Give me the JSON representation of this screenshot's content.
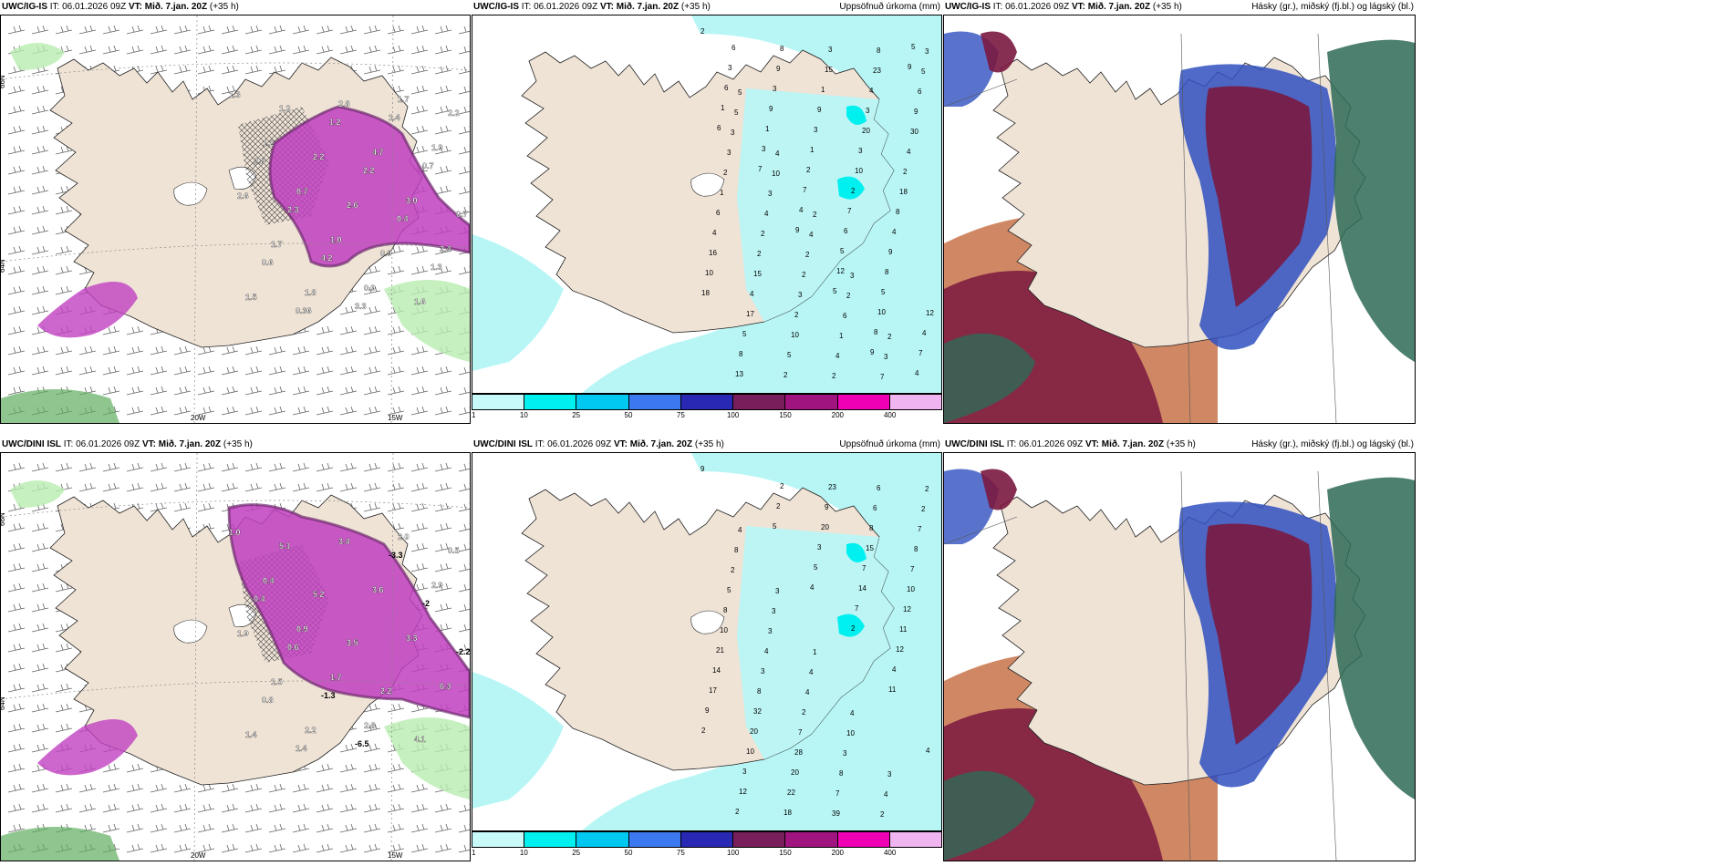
{
  "rows": [
    {
      "model": "UWC/IG-IS",
      "it_label": "IT: 06.01.2026 09Z",
      "vt_label": "VT: Mið. 7.jan. 20Z",
      "lead": "(+35 h)",
      "precip_values": [
        "2",
        "5",
        "4",
        "2",
        "3",
        "2",
        "3",
        "5",
        "10",
        "4",
        "2",
        "3",
        "5",
        "3",
        "3",
        "2",
        "6",
        "7",
        "6",
        "3",
        "4",
        "2",
        "1",
        "8",
        "9",
        "2",
        "2",
        "3",
        "4",
        "23",
        "30",
        "1",
        "2",
        "2",
        "2",
        "4",
        "4",
        "6",
        "15",
        "10",
        "3",
        "3",
        "2",
        "4",
        "4",
        "5",
        "15",
        "20",
        "18",
        "16",
        "17",
        "2",
        "1",
        "3",
        "8",
        "10",
        "5",
        "8",
        "9",
        "10",
        "4",
        "18",
        "8",
        "9",
        "3",
        "2",
        "9",
        "12",
        "13",
        "3",
        "1",
        "7",
        "8",
        "4",
        "6",
        "9",
        "2",
        "6",
        "5",
        "7",
        "3",
        "1",
        "7",
        "5",
        "10",
        "4",
        "6",
        "3",
        "4",
        "12",
        "8",
        "5",
        "1",
        "7",
        "9",
        "5",
        "9",
        "9",
        "6"
      ],
      "temp_values": [
        "1.3",
        "1.2",
        "0.7",
        "1.0",
        "0.9",
        "1.7",
        "1.9",
        "2.6",
        "1.7",
        "1.8",
        "2.8",
        "4.7",
        "3.0",
        "2.4",
        "1.5",
        "1.2",
        "2.2",
        "2.6",
        "0.9",
        "1.6",
        "2.2",
        "2.8",
        "2.3",
        "4.2",
        "3.3",
        "1.4",
        "0.7",
        "0.7",
        "0.6",
        "0.36",
        "1.2",
        "2.2",
        "0.4",
        "1.3"
      ]
    },
    {
      "model": "UWC/DINI ISL",
      "it_label": "IT: 06.01.2026 09Z",
      "vt_label": "VT: Mið. 7.jan. 20Z",
      "lead": "(+35 h)",
      "precip_values": [
        "9",
        "4",
        "3",
        "1",
        "4",
        "3",
        "2",
        "8",
        "3",
        "4",
        "10",
        "4",
        "2",
        "2",
        "3",
        "4",
        "3",
        "2",
        "7",
        "5",
        "4",
        "2",
        "8",
        "6",
        "8",
        "8",
        "3",
        "7",
        "7",
        "6",
        "7",
        "10",
        "8",
        "28",
        "39",
        "8",
        "10",
        "21",
        "32",
        "20",
        "23",
        "15",
        "12",
        "14",
        "20",
        "22",
        "9",
        "7",
        "11",
        "17",
        "10",
        "18",
        "20",
        "14",
        "12",
        "9",
        "3",
        "2",
        "3",
        "7",
        "4",
        "2",
        "12",
        "2",
        "5",
        "2",
        "11",
        "4",
        "2",
        "5",
        "4"
      ],
      "temp_values": [
        "1.0",
        "0.4",
        "0.9",
        "1.7",
        "2.8",
        "2.0",
        "2.9",
        "1.9",
        "1.5",
        "2.2",
        "3.4",
        "3.6",
        "3.3",
        "6.3",
        "1.4",
        "5.1",
        "5.2",
        "3.5",
        "2.2",
        "4.1",
        "0.5",
        "0.4",
        "0.6",
        "-1.3",
        "-6.5",
        "-3.3",
        "-2",
        "-2.2",
        "0.8",
        "1.4"
      ]
    }
  ],
  "precip_title": "Uppsöfnuð úrkoma (mm)",
  "cloud_title": "Hásky (gr.), miðský (fj.bl.) og lágský (bl.)",
  "lon_labels": [
    "20W",
    "15W",
    "25W"
  ],
  "lat_labels": [
    "66N",
    "64N",
    "63N"
  ],
  "colorbar": {
    "ticks": [
      "1",
      "10",
      "25",
      "50",
      "75",
      "100",
      "150",
      "200",
      "400"
    ],
    "colors": [
      "#c8fafa",
      "#00f0f0",
      "#00c8f0",
      "#3c78f0",
      "#2828b4",
      "#781e5a",
      "#a0147f",
      "#f000b4",
      "#f0b4f0"
    ]
  },
  "colors": {
    "land": "#efe3d6",
    "cyan_light": "#b8f6f6",
    "cyan": "#00f0f0",
    "magenta": "#c040c0",
    "magenta_dark": "#6d2a6d",
    "green_light": "#b9ecb0",
    "cloud_high": "#7a1840",
    "cloud_mid": "#3050c0",
    "cloud_low": "#2e6a56",
    "cloud_orange": "#c06030"
  }
}
